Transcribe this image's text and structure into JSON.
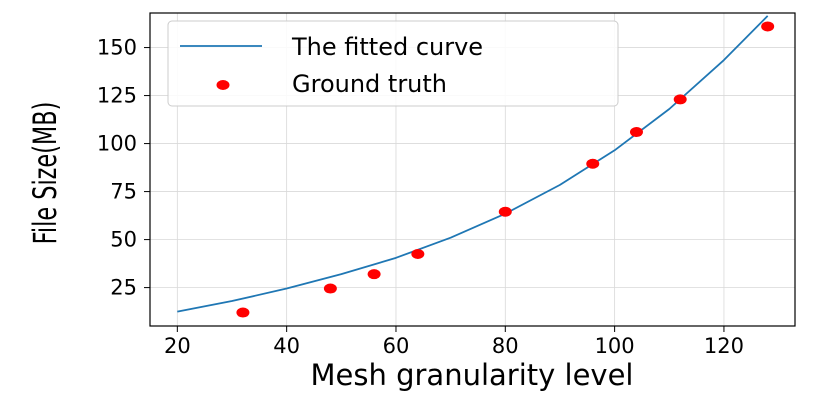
{
  "colors": {
    "curve": "#1f77b4",
    "points": "#ff0000",
    "grid": "#d9d9d9",
    "axes": "#000000"
  },
  "legend": {
    "curve_label": "The fitted curve",
    "points_label": "Ground truth",
    "placement": "top-left"
  },
  "chart_data": {
    "type": "line",
    "xlabel": "Mesh granularity level",
    "ylabel": "File Size(MB)",
    "xlim": [
      15,
      133
    ],
    "ylim": [
      5,
      168
    ],
    "grid": true,
    "xticks": [
      20,
      40,
      60,
      80,
      100,
      120
    ],
    "yticks": [
      25,
      50,
      75,
      100,
      125,
      150
    ],
    "series": [
      {
        "name": "The fitted curve",
        "kind": "line",
        "x": [
          20,
          30,
          40,
          50,
          60,
          70,
          80,
          90,
          100,
          110,
          120,
          128
        ],
        "y": [
          12.5,
          18,
          24.5,
          32,
          40.5,
          51,
          63.5,
          78.5,
          96.5,
          118,
          143.5,
          166.5
        ]
      },
      {
        "name": "Ground truth",
        "kind": "scatter",
        "x": [
          32,
          48,
          56,
          64,
          80,
          96,
          104,
          112,
          128
        ],
        "y": [
          12,
          24.5,
          32,
          42.5,
          64.5,
          89.5,
          106,
          123,
          161
        ]
      }
    ]
  }
}
